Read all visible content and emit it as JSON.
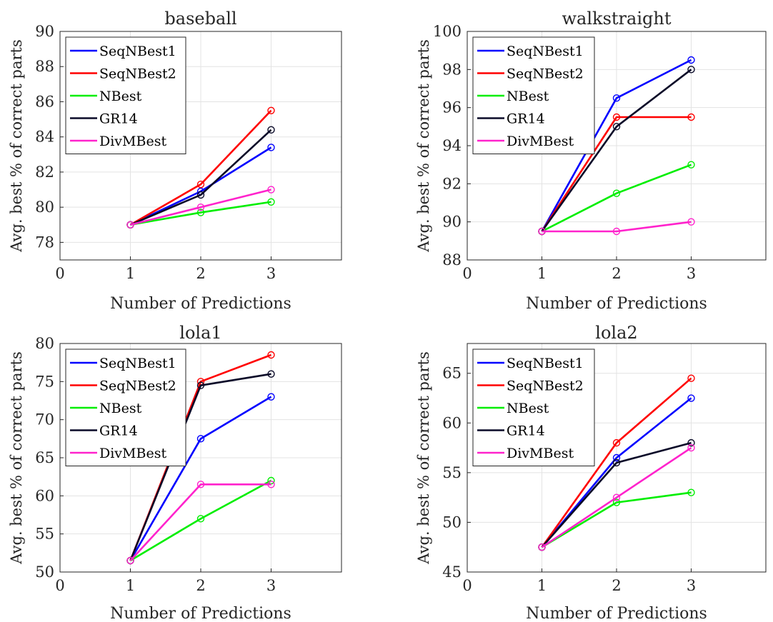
{
  "chart_data": [
    {
      "type": "line",
      "title": "baseball",
      "xlabel": "Number of Predictions",
      "ylabel": "Avg. best % of correct parts",
      "x": [
        1,
        2,
        3
      ],
      "xlim": [
        0,
        4
      ],
      "xticks": [
        0,
        1,
        2,
        3
      ],
      "ylim": [
        77,
        90
      ],
      "yticks": [
        78,
        80,
        82,
        84,
        86,
        88,
        90
      ],
      "grid": true,
      "legend_position": "top-left",
      "series": [
        {
          "name": "SeqNBest1",
          "color": "#0000ff",
          "values": [
            79,
            80.9,
            83.4
          ]
        },
        {
          "name": "SeqNBest2",
          "color": "#ff0000",
          "values": [
            79,
            81.3,
            85.5
          ]
        },
        {
          "name": "NBest",
          "color": "#00ee00",
          "values": [
            79,
            79.7,
            80.3
          ]
        },
        {
          "name": "GR14",
          "color": "#0a0a28",
          "values": [
            79,
            80.7,
            84.4
          ]
        },
        {
          "name": "DivMBest",
          "color": "#ff22cc",
          "values": [
            79,
            80.0,
            81.0
          ]
        }
      ]
    },
    {
      "type": "line",
      "title": "walkstraight",
      "xlabel": "Number of Predictions",
      "ylabel": "Avg. best % of correct parts",
      "x": [
        1,
        2,
        3
      ],
      "xlim": [
        0,
        4
      ],
      "xticks": [
        0,
        1,
        2,
        3
      ],
      "ylim": [
        88,
        100
      ],
      "yticks": [
        88,
        90,
        92,
        94,
        96,
        98,
        100
      ],
      "grid": true,
      "legend_position": "top-left",
      "series": [
        {
          "name": "SeqNBest1",
          "color": "#0000ff",
          "values": [
            89.5,
            96.5,
            98.5
          ]
        },
        {
          "name": "SeqNBest2",
          "color": "#ff0000",
          "values": [
            89.5,
            95.5,
            95.5
          ]
        },
        {
          "name": "NBest",
          "color": "#00ee00",
          "values": [
            89.5,
            91.5,
            93.0
          ]
        },
        {
          "name": "GR14",
          "color": "#0a0a28",
          "values": [
            89.5,
            95.0,
            98.0
          ]
        },
        {
          "name": "DivMBest",
          "color": "#ff22cc",
          "values": [
            89.5,
            89.5,
            90.0
          ]
        }
      ]
    },
    {
      "type": "line",
      "title": "lola1",
      "xlabel": "Number of Predictions",
      "ylabel": "Avg. best % of correct parts",
      "x": [
        1,
        2,
        3
      ],
      "xlim": [
        0,
        4
      ],
      "xticks": [
        0,
        1,
        2,
        3
      ],
      "ylim": [
        50,
        80
      ],
      "yticks": [
        50,
        55,
        60,
        65,
        70,
        75,
        80
      ],
      "grid": true,
      "legend_position": "top-left",
      "series": [
        {
          "name": "SeqNBest1",
          "color": "#0000ff",
          "values": [
            51.5,
            67.5,
            73.0
          ]
        },
        {
          "name": "SeqNBest2",
          "color": "#ff0000",
          "values": [
            51.5,
            75.0,
            78.5
          ]
        },
        {
          "name": "NBest",
          "color": "#00ee00",
          "values": [
            51.5,
            57.0,
            62.0
          ]
        },
        {
          "name": "GR14",
          "color": "#0a0a28",
          "values": [
            51.5,
            74.5,
            76.0
          ]
        },
        {
          "name": "DivMBest",
          "color": "#ff22cc",
          "values": [
            51.5,
            61.5,
            61.5
          ]
        }
      ]
    },
    {
      "type": "line",
      "title": "lola2",
      "xlabel": "Number of Predictions",
      "ylabel": "Avg. best % of correct parts",
      "x": [
        1,
        2,
        3
      ],
      "xlim": [
        0,
        4
      ],
      "xticks": [
        0,
        1,
        2,
        3
      ],
      "ylim": [
        45,
        68
      ],
      "yticks": [
        45,
        50,
        55,
        60,
        65
      ],
      "grid": true,
      "legend_position": "top-left",
      "series": [
        {
          "name": "SeqNBest1",
          "color": "#0000ff",
          "values": [
            47.5,
            56.5,
            62.5
          ]
        },
        {
          "name": "SeqNBest2",
          "color": "#ff0000",
          "values": [
            47.5,
            58.0,
            64.5
          ]
        },
        {
          "name": "NBest",
          "color": "#00ee00",
          "values": [
            47.5,
            52.0,
            53.0
          ]
        },
        {
          "name": "GR14",
          "color": "#0a0a28",
          "values": [
            47.5,
            56.0,
            58.0
          ]
        },
        {
          "name": "DivMBest",
          "color": "#ff22cc",
          "values": [
            47.5,
            52.5,
            57.5
          ]
        }
      ]
    }
  ]
}
